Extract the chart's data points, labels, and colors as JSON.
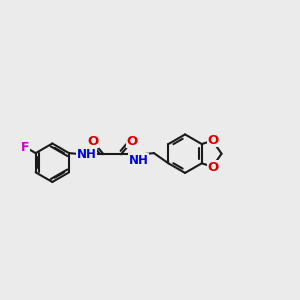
{
  "background_color": "#ebebeb",
  "bond_color": "#1a1a1a",
  "bond_width": 1.5,
  "atom_colors": {
    "F": "#cc00cc",
    "N": "#0000dd",
    "O": "#dd0000",
    "H": "#3a8888",
    "C": "#1a1a1a"
  },
  "font_size": 8.0,
  "fig_width": 3.0,
  "fig_height": 3.0,
  "dpi": 100,
  "xlim": [
    0.0,
    10.5
  ],
  "ylim": [
    1.5,
    5.5
  ]
}
